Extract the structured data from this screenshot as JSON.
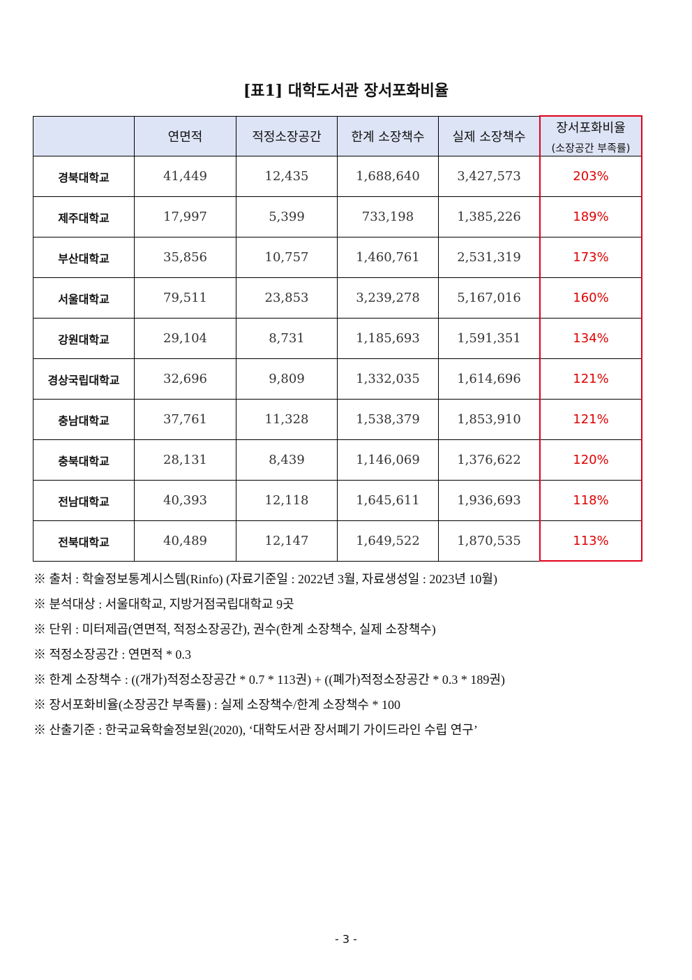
{
  "title": "[표1] 대학도서관 장서포화비율",
  "table": {
    "headers": [
      "",
      "연면적",
      "적정소장공간",
      "한계  소장책수",
      "실제  소장책수",
      "장서포화비율"
    ],
    "ratio_subheader": "(소장공간 부족률)",
    "rows": [
      [
        "경북대학교",
        "41,449",
        "12,435",
        "1,688,640",
        "3,427,573",
        "203%"
      ],
      [
        "제주대학교",
        "17,997",
        "5,399",
        "733,198",
        "1,385,226",
        "189%"
      ],
      [
        "부산대학교",
        "35,856",
        "10,757",
        "1,460,761",
        "2,531,319",
        "173%"
      ],
      [
        "서울대학교",
        "79,511",
        "23,853",
        "3,239,278",
        "5,167,016",
        "160%"
      ],
      [
        "강원대학교",
        "29,104",
        "8,731",
        "1,185,693",
        "1,591,351",
        "134%"
      ],
      [
        "경상국립대학교",
        "32,696",
        "9,809",
        "1,332,035",
        "1,614,696",
        "121%"
      ],
      [
        "충남대학교",
        "37,761",
        "11,328",
        "1,538,379",
        "1,853,910",
        "121%"
      ],
      [
        "충북대학교",
        "28,131",
        "8,439",
        "1,146,069",
        "1,376,622",
        "120%"
      ],
      [
        "전남대학교",
        "40,393",
        "12,118",
        "1,645,611",
        "1,936,693",
        "118%"
      ],
      [
        "전북대학교",
        "40,489",
        "12,147",
        "1,649,522",
        "1,870,535",
        "113%"
      ]
    ]
  },
  "colors": {
    "header_bg": "#dde4f5",
    "highlight": "#e00000"
  },
  "notes": [
    "※ 출처 : 학술정보통계시스템(Rinfo) (자료기준일 : 2022년 3월, 자료생성일 : 2023년 10월)",
    "※ 분석대상 : 서울대학교, 지방거점국립대학교 9곳",
    "※ 단위 : 미터제곱(연면적, 적정소장공간), 권수(한계 소장책수, 실제 소장책수)",
    "※ 적정소장공간 : 연면적 * 0.3",
    "※ 한계 소장책수 : ((개가)적정소장공간 * 0.7 * 113권) + ((폐가)적정소장공간 * 0.3 * 189권)",
    "※ 장서포화비율(소장공간 부족률) : 실제 소장책수/한계 소장책수 * 100",
    "※ 산출기준 : 한국교육학술정보원(2020), ‘대학도서관 장서폐기 가이드라인 수립 연구’"
  ],
  "page_number": "- 3 -"
}
